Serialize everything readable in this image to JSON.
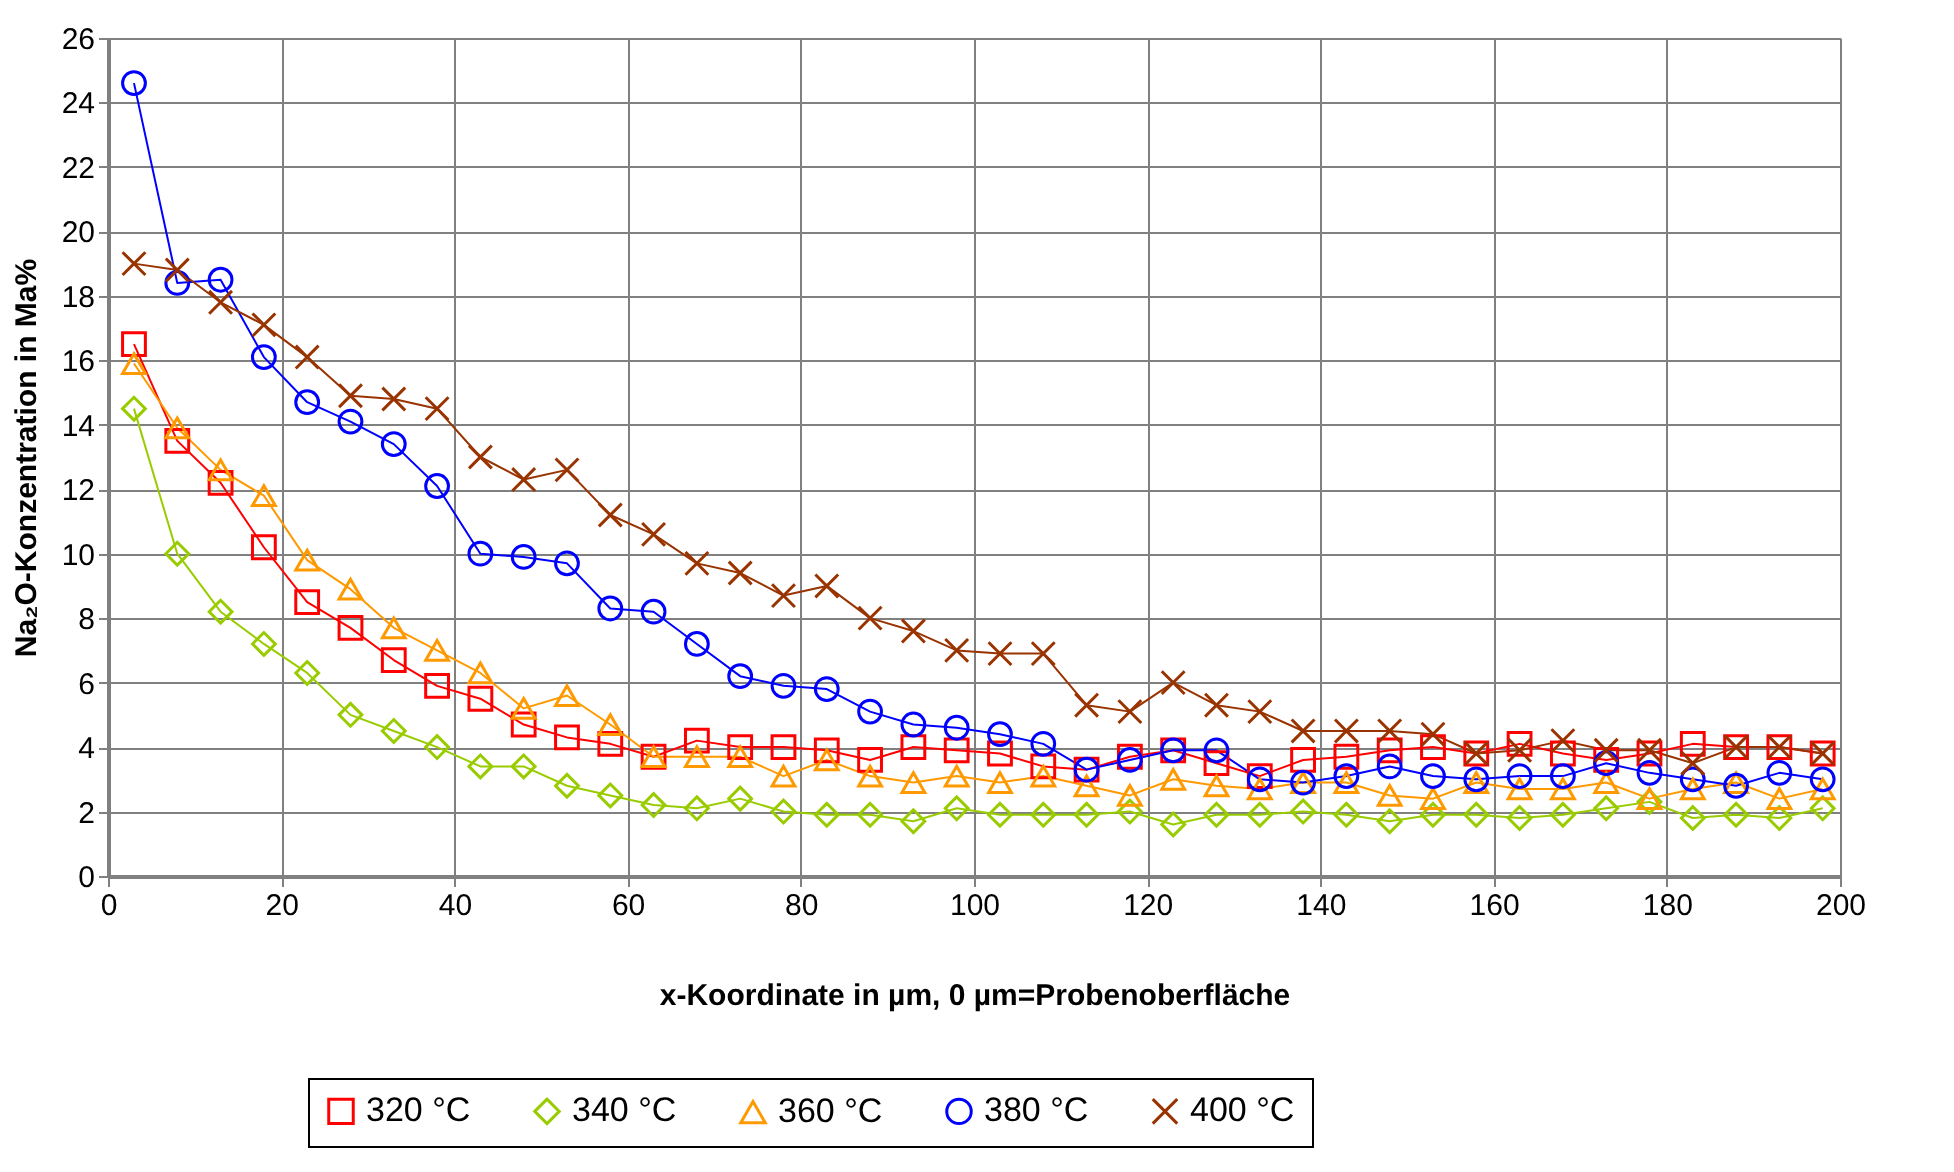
{
  "chart_data": {
    "type": "line",
    "xlabel": "x-Koordinate in µm, 0 µm=Probenoberfläche",
    "ylabel": "Na₂O-Konzentration in Ma%",
    "x": [
      3,
      8,
      13,
      18,
      23,
      28,
      33,
      38,
      43,
      48,
      53,
      58,
      63,
      68,
      73,
      78,
      83,
      88,
      93,
      98,
      103,
      108,
      113,
      118,
      123,
      128,
      133,
      138,
      143,
      148,
      153,
      158,
      163,
      168,
      173,
      178,
      183,
      188,
      193,
      198
    ],
    "xlim": [
      0,
      200
    ],
    "xticks": [
      0,
      20,
      40,
      60,
      80,
      100,
      120,
      140,
      160,
      180,
      200
    ],
    "ylim": [
      0,
      26
    ],
    "yticks": [
      0,
      2,
      4,
      6,
      8,
      10,
      12,
      14,
      16,
      18,
      20,
      22,
      24,
      26
    ],
    "grid": true,
    "legend": "bottom",
    "line_style": "solid",
    "series": [
      {
        "name": "320 °C",
        "color": "#ff0000",
        "marker": "square",
        "values": [
          16.5,
          13.5,
          12.2,
          10.2,
          8.5,
          7.7,
          6.7,
          5.9,
          5.5,
          4.7,
          4.3,
          4.1,
          3.7,
          4.2,
          4.0,
          4.0,
          3.9,
          3.6,
          4.0,
          3.9,
          3.8,
          3.4,
          3.3,
          3.7,
          3.9,
          3.5,
          3.1,
          3.6,
          3.7,
          3.9,
          4.0,
          3.8,
          4.1,
          3.8,
          3.6,
          3.8,
          4.1,
          4.0,
          4.0,
          3.8
        ]
      },
      {
        "name": "340 °C",
        "color": "#99cc00",
        "marker": "diamond",
        "values": [
          14.5,
          10.0,
          8.2,
          7.2,
          6.3,
          5.0,
          4.5,
          4.0,
          3.4,
          3.4,
          2.8,
          2.5,
          2.2,
          2.1,
          2.4,
          2.0,
          1.9,
          1.9,
          1.7,
          2.1,
          1.9,
          1.9,
          1.9,
          2.0,
          1.6,
          1.9,
          1.9,
          2.0,
          1.9,
          1.7,
          1.9,
          1.9,
          1.8,
          1.9,
          2.1,
          2.3,
          1.8,
          1.9,
          1.8,
          2.1
        ]
      },
      {
        "name": "360 °C",
        "color": "#ff9900",
        "marker": "triangle",
        "values": [
          15.9,
          13.9,
          12.6,
          11.8,
          9.8,
          8.9,
          7.7,
          7.0,
          6.3,
          5.2,
          5.6,
          4.7,
          3.7,
          3.7,
          3.7,
          3.1,
          3.6,
          3.1,
          2.9,
          3.1,
          2.9,
          3.1,
          2.8,
          2.5,
          3.0,
          2.8,
          2.7,
          2.9,
          2.9,
          2.5,
          2.4,
          2.9,
          2.7,
          2.7,
          2.9,
          2.4,
          2.7,
          2.9,
          2.4,
          2.7
        ]
      },
      {
        "name": "380 °C",
        "color": "#0000ff",
        "marker": "circle",
        "values": [
          24.6,
          18.4,
          18.5,
          16.1,
          14.7,
          14.1,
          13.4,
          12.1,
          10.0,
          9.9,
          9.7,
          8.3,
          8.2,
          7.2,
          6.2,
          5.9,
          5.8,
          5.1,
          4.7,
          4.6,
          4.4,
          4.1,
          3.3,
          3.6,
          3.9,
          3.9,
          3.0,
          2.9,
          3.1,
          3.4,
          3.1,
          3.0,
          3.1,
          3.1,
          3.5,
          3.2,
          3.0,
          2.8,
          3.2,
          3.0
        ]
      },
      {
        "name": "400 °C",
        "color": "#993300",
        "marker": "cross",
        "values": [
          19.0,
          18.8,
          17.8,
          17.1,
          16.1,
          14.9,
          14.8,
          14.5,
          13.0,
          12.3,
          12.6,
          11.2,
          10.6,
          9.7,
          9.4,
          8.7,
          9.0,
          8.0,
          7.6,
          7.0,
          6.9,
          6.9,
          5.3,
          5.1,
          6.0,
          5.3,
          5.1,
          4.5,
          4.5,
          4.5,
          4.4,
          3.8,
          3.9,
          4.2,
          3.9,
          3.9,
          3.5,
          4.0,
          4.0,
          3.8
        ]
      }
    ]
  }
}
